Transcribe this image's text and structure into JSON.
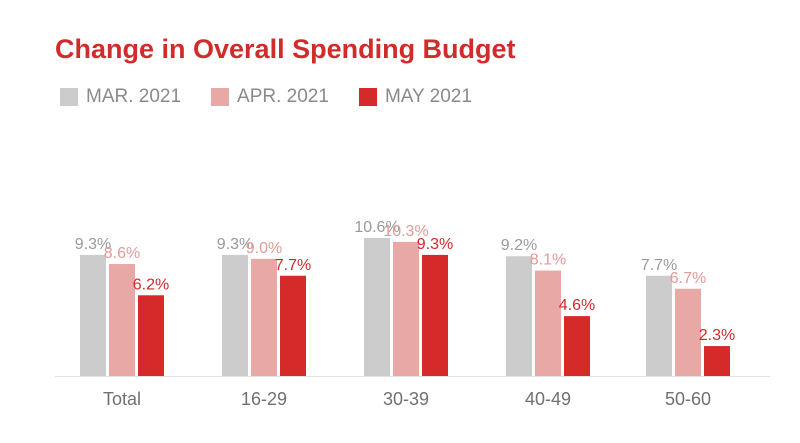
{
  "chart_data": {
    "type": "bar",
    "title": "Change in Overall Spending Budget",
    "categories": [
      "Total",
      "16-29",
      "30-39",
      "40-49",
      "50-60"
    ],
    "series": [
      {
        "name": "MAR. 2021",
        "color": "#cccccc",
        "label_color": "#9a9a9a",
        "values": [
          9.3,
          9.3,
          10.6,
          9.2,
          7.7
        ],
        "labels": [
          "9.3%",
          "9.3%",
          "10.6%",
          "9.2%",
          "7.7%"
        ]
      },
      {
        "name": "APR. 2021",
        "color": "#e8a8a6",
        "label_color": "#e39a98",
        "values": [
          8.6,
          9.0,
          10.3,
          8.1,
          6.7
        ],
        "labels": [
          "8.6%",
          "9.0%",
          "10.3%",
          "8.1%",
          "6.7%"
        ]
      },
      {
        "name": "MAY 2021",
        "color": "#d42a2a",
        "label_color": "#cf2a2a",
        "values": [
          6.2,
          7.7,
          9.3,
          4.6,
          2.3
        ],
        "labels": [
          "6.2%",
          "7.7%",
          "9.3%",
          "4.6%",
          "2.3%"
        ]
      }
    ],
    "ylim": [
      0,
      10.6
    ],
    "xlabel": "",
    "ylabel": "",
    "legend_position": "top-left",
    "grid": false
  }
}
